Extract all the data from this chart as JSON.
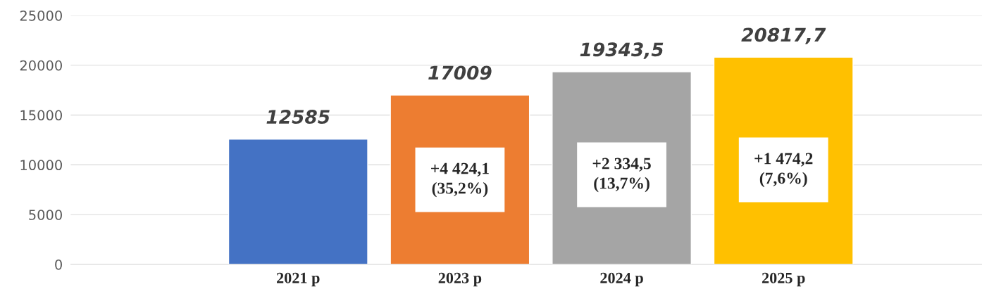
{
  "chart_data": {
    "type": "bar",
    "categories": [
      "2021 р",
      "2023 р",
      "2024 р",
      "2025 р"
    ],
    "values": [
      12585,
      17009,
      19343.5,
      20817.7
    ],
    "colors": [
      "#4472c4",
      "#ed7d31",
      "#a5a5a5",
      "#ffc000"
    ],
    "value_labels": [
      "12585",
      "17009",
      "19343,5",
      "20817,7"
    ],
    "ylim": [
      0,
      25000
    ],
    "yticks": [
      0,
      5000,
      10000,
      15000,
      20000,
      25000
    ],
    "grid": "y",
    "annotations": [
      "+4 424,1\n(35,2%)",
      "+2 334,5\n(13,7%)",
      "+1 474,2\n(7,6%)"
    ]
  }
}
